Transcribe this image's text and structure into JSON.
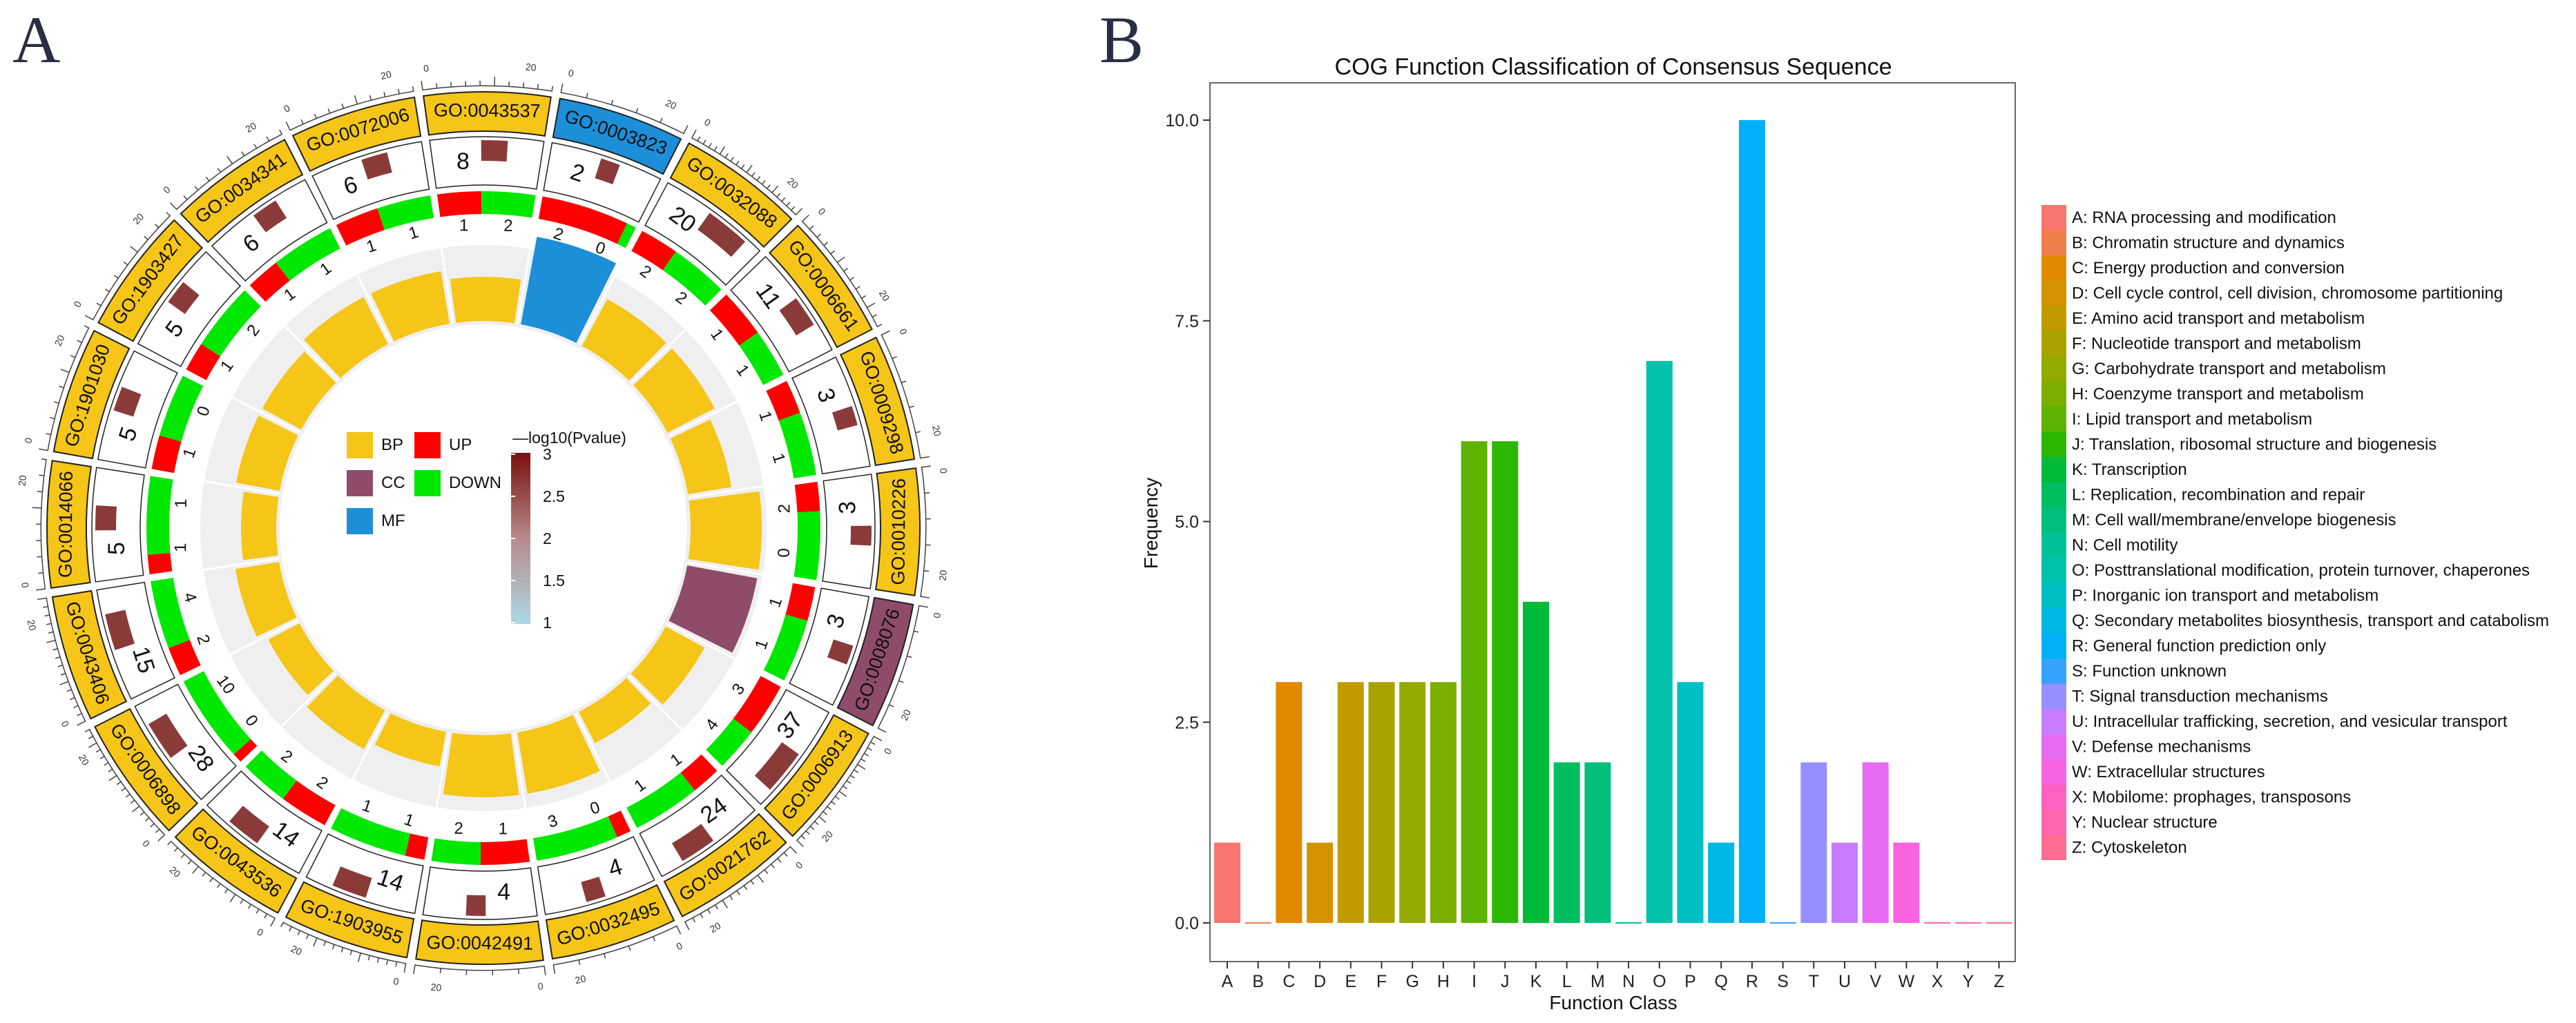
{
  "panel_a_label": "A",
  "panel_b_label": "B",
  "colors": {
    "gold": "#F5C518",
    "cc": "#8E4B6A",
    "mf": "#1C8FD8",
    "up": "#FF0000",
    "down": "#00E800",
    "bar_dark": "#8B3A3A",
    "track_bg": "#EFEFEF",
    "ring_line": "#222222"
  },
  "chart_data": [
    {
      "type": "circular",
      "legend": {
        "categories": [
          {
            "label": "BP",
            "color": "#F5C518"
          },
          {
            "label": "CC",
            "color": "#8E4B6A"
          },
          {
            "label": "MF",
            "color": "#1C8FD8"
          }
        ],
        "regulation": [
          {
            "label": "UP",
            "color": "#FF0000"
          },
          {
            "label": "DOWN",
            "color": "#00E800"
          }
        ],
        "gradient_title": "—log10(Pvalue)",
        "gradient_ticks": [
          "3",
          "2.5",
          "2",
          "1.5",
          "1"
        ]
      },
      "tick_scale_labels": [
        "0",
        "20"
      ],
      "terms": [
        {
          "id": "GO:0043537",
          "cat": "BP",
          "count": "8",
          "ntick": 9,
          "up": 0.45,
          "down_num": "2",
          "up_num": "1",
          "bar_level": 3,
          "neglogp": 2.9
        },
        {
          "id": "GO:0003823",
          "cat": "MF",
          "count": "2",
          "ntick": 5,
          "up": 0.9,
          "down_num": "0",
          "up_num": "2",
          "bar_level": 8,
          "neglogp": 2.4
        },
        {
          "id": "GO:0032088",
          "cat": "BP",
          "count": "20",
          "ntick": 20,
          "up": 0.4,
          "down_num": "2",
          "up_num": "2",
          "bar_level": 4,
          "neglogp": 2.8
        },
        {
          "id": "GO:0006661",
          "cat": "BP",
          "count": "11",
          "ntick": 12,
          "up": 0.5,
          "down_num": "1",
          "up_num": "1",
          "bar_level": 4,
          "neglogp": 2.6
        },
        {
          "id": "GO:0009298",
          "cat": "BP",
          "count": "3",
          "ntick": 5,
          "up": 0.35,
          "down_num": "1",
          "up_num": "1",
          "bar_level": 3,
          "neglogp": 2.2
        },
        {
          "id": "GO:0010226",
          "cat": "BP",
          "count": "3",
          "ntick": 5,
          "up": 0.3,
          "down_num": "0",
          "up_num": "2",
          "bar_level": 6,
          "neglogp": 2.2
        },
        {
          "id": "GO:0008076",
          "cat": "CC",
          "count": "3",
          "ntick": 5,
          "up": 0.35,
          "down_num": "1",
          "up_num": "1",
          "bar_level": 6,
          "neglogp": 2.3
        },
        {
          "id": "GO:0006913",
          "cat": "BP",
          "count": "37",
          "ntick": 20,
          "up": 0.55,
          "down_num": "4",
          "up_num": "3",
          "bar_level": 3,
          "neglogp": 2.8
        },
        {
          "id": "GO:0021762",
          "cat": "BP",
          "count": "24",
          "ntick": 15,
          "up": 0.3,
          "down_num": "1",
          "up_num": "1",
          "bar_level": 2,
          "neglogp": 2.7
        },
        {
          "id": "GO:0032495",
          "cat": "BP",
          "count": "4",
          "ntick": 5,
          "up": 0.15,
          "down_num": "3",
          "up_num": "0",
          "bar_level": 5,
          "neglogp": 2.2
        },
        {
          "id": "GO:0042491",
          "cat": "BP",
          "count": "4",
          "ntick": 5,
          "up": 0.5,
          "down_num": "2",
          "up_num": "1",
          "bar_level": 5,
          "neglogp": 2.2
        },
        {
          "id": "GO:1903955",
          "cat": "BP",
          "count": "14",
          "ntick": 14,
          "up": 0.2,
          "down_num": "1",
          "up_num": "1",
          "bar_level": 2,
          "neglogp": 2.8
        },
        {
          "id": "GO:0043536",
          "cat": "BP",
          "count": "14",
          "ntick": 14,
          "up": 0.5,
          "down_num": "2",
          "up_num": "2",
          "bar_level": 3,
          "neglogp": 2.7
        },
        {
          "id": "GO:0006898",
          "cat": "BP",
          "count": "28",
          "ntick": 17,
          "up": 0.1,
          "down_num": "10",
          "up_num": "0",
          "bar_level": 2,
          "neglogp": 2.9
        },
        {
          "id": "GO:0043406",
          "cat": "BP",
          "count": "15",
          "ntick": 15,
          "up": 0.3,
          "down_num": "4",
          "up_num": "2",
          "bar_level": 3,
          "neglogp": 2.8
        },
        {
          "id": "GO:0014066",
          "cat": "BP",
          "count": "5",
          "ntick": 8,
          "up": 0.2,
          "down_num": "1",
          "up_num": "1",
          "bar_level": 2,
          "neglogp": 2.7
        },
        {
          "id": "GO:1901030",
          "cat": "BP",
          "count": "5",
          "ntick": 8,
          "up": 0.35,
          "down_num": "0",
          "up_num": "1",
          "bar_level": 3,
          "neglogp": 2.7
        },
        {
          "id": "GO:1903427",
          "cat": "BP",
          "count": "5",
          "ntick": 8,
          "up": 0.3,
          "down_num": "2",
          "up_num": "1",
          "bar_level": 3,
          "neglogp": 2.7
        },
        {
          "id": "GO:0034341",
          "cat": "BP",
          "count": "6",
          "ntick": 9,
          "up": 0.35,
          "down_num": "1",
          "up_num": "1",
          "bar_level": 4,
          "neglogp": 2.6
        },
        {
          "id": "GO:0072006",
          "cat": "BP",
          "count": "6",
          "ntick": 9,
          "up": 0.45,
          "down_num": "1",
          "up_num": "1",
          "bar_level": 4,
          "neglogp": 2.7
        }
      ]
    },
    {
      "type": "bar",
      "title": "COG Function Classification of Consensus Sequence",
      "xlabel": "Function Class",
      "ylabel": "Frequency",
      "ylim": [
        0,
        10.0
      ],
      "yticks": [
        "0.0",
        "2.5",
        "5.0",
        "7.5",
        "10.0"
      ],
      "categories": [
        "A",
        "B",
        "C",
        "D",
        "E",
        "F",
        "G",
        "H",
        "I",
        "J",
        "K",
        "L",
        "M",
        "N",
        "O",
        "P",
        "Q",
        "R",
        "S",
        "T",
        "U",
        "V",
        "W",
        "X",
        "Y",
        "Z"
      ],
      "values": [
        1,
        0,
        3,
        1,
        3,
        3,
        3,
        3,
        6,
        6,
        4,
        2,
        2,
        0,
        7,
        3,
        1,
        10,
        0,
        2,
        1,
        2,
        1,
        0,
        0,
        0
      ],
      "colors": [
        "#F8766D",
        "#EE7F4D",
        "#E38900",
        "#D39200",
        "#C09B00",
        "#AAA200",
        "#93AA00",
        "#7CAE00",
        "#5EB300",
        "#2CB700",
        "#00BA38",
        "#00BD5F",
        "#00BF7D",
        "#00C097",
        "#00C1AB",
        "#00BFC4",
        "#00B8E5",
        "#00B0F6",
        "#35A2FF",
        "#9590FF",
        "#C77CFF",
        "#E76BF3",
        "#F763E0",
        "#FF61C3",
        "#FF65AE",
        "#FF6C91"
      ],
      "legend": [
        "A: RNA processing and modification",
        "B: Chromatin structure and dynamics",
        "C: Energy production and conversion",
        "D: Cell cycle control, cell division, chromosome partitioning",
        "E: Amino acid transport and metabolism",
        "F: Nucleotide transport and metabolism",
        "G: Carbohydrate transport and metabolism",
        "H: Coenzyme transport and metabolism",
        "I: Lipid transport and metabolism",
        "J: Translation, ribosomal structure and biogenesis",
        "K: Transcription",
        "L: Replication, recombination and repair",
        "M: Cell wall/membrane/envelope biogenesis",
        "N: Cell motility",
        "O: Posttranslational modification, protein turnover, chaperones",
        "P: Inorganic ion transport and metabolism",
        "Q: Secondary metabolites biosynthesis, transport and catabolism",
        "R: General function prediction only",
        "S: Function unknown",
        "T: Signal transduction mechanisms",
        "U: Intracellular trafficking, secretion, and vesicular transport",
        "V: Defense mechanisms",
        "W: Extracellular structures",
        "X: Mobilome: prophages, transposons",
        "Y: Nuclear structure",
        "Z: Cytoskeleton"
      ]
    }
  ]
}
